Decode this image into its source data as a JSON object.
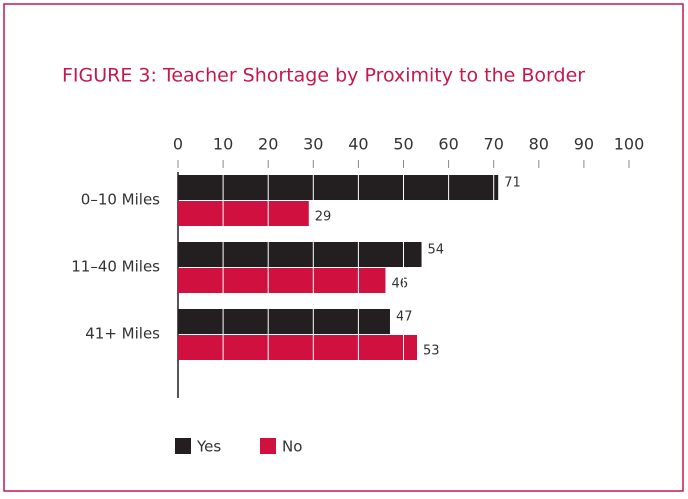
{
  "chart_data": {
    "type": "bar",
    "orientation": "horizontal",
    "title": "FIGURE 3: Teacher Shortage by Proximity to the Border",
    "categories": [
      "0–10 Miles",
      "11–40 Miles",
      "41+ Miles"
    ],
    "series": [
      {
        "name": "Yes",
        "color": "#231f20",
        "values": [
          71,
          54,
          47
        ]
      },
      {
        "name": "No",
        "color": "#d0103f",
        "values": [
          29,
          46,
          53
        ]
      }
    ],
    "xlim": [
      0,
      100
    ],
    "xticks": [
      0,
      10,
      20,
      30,
      40,
      50,
      60,
      70,
      80,
      90,
      100
    ],
    "grid": true,
    "legend": "bottom"
  }
}
